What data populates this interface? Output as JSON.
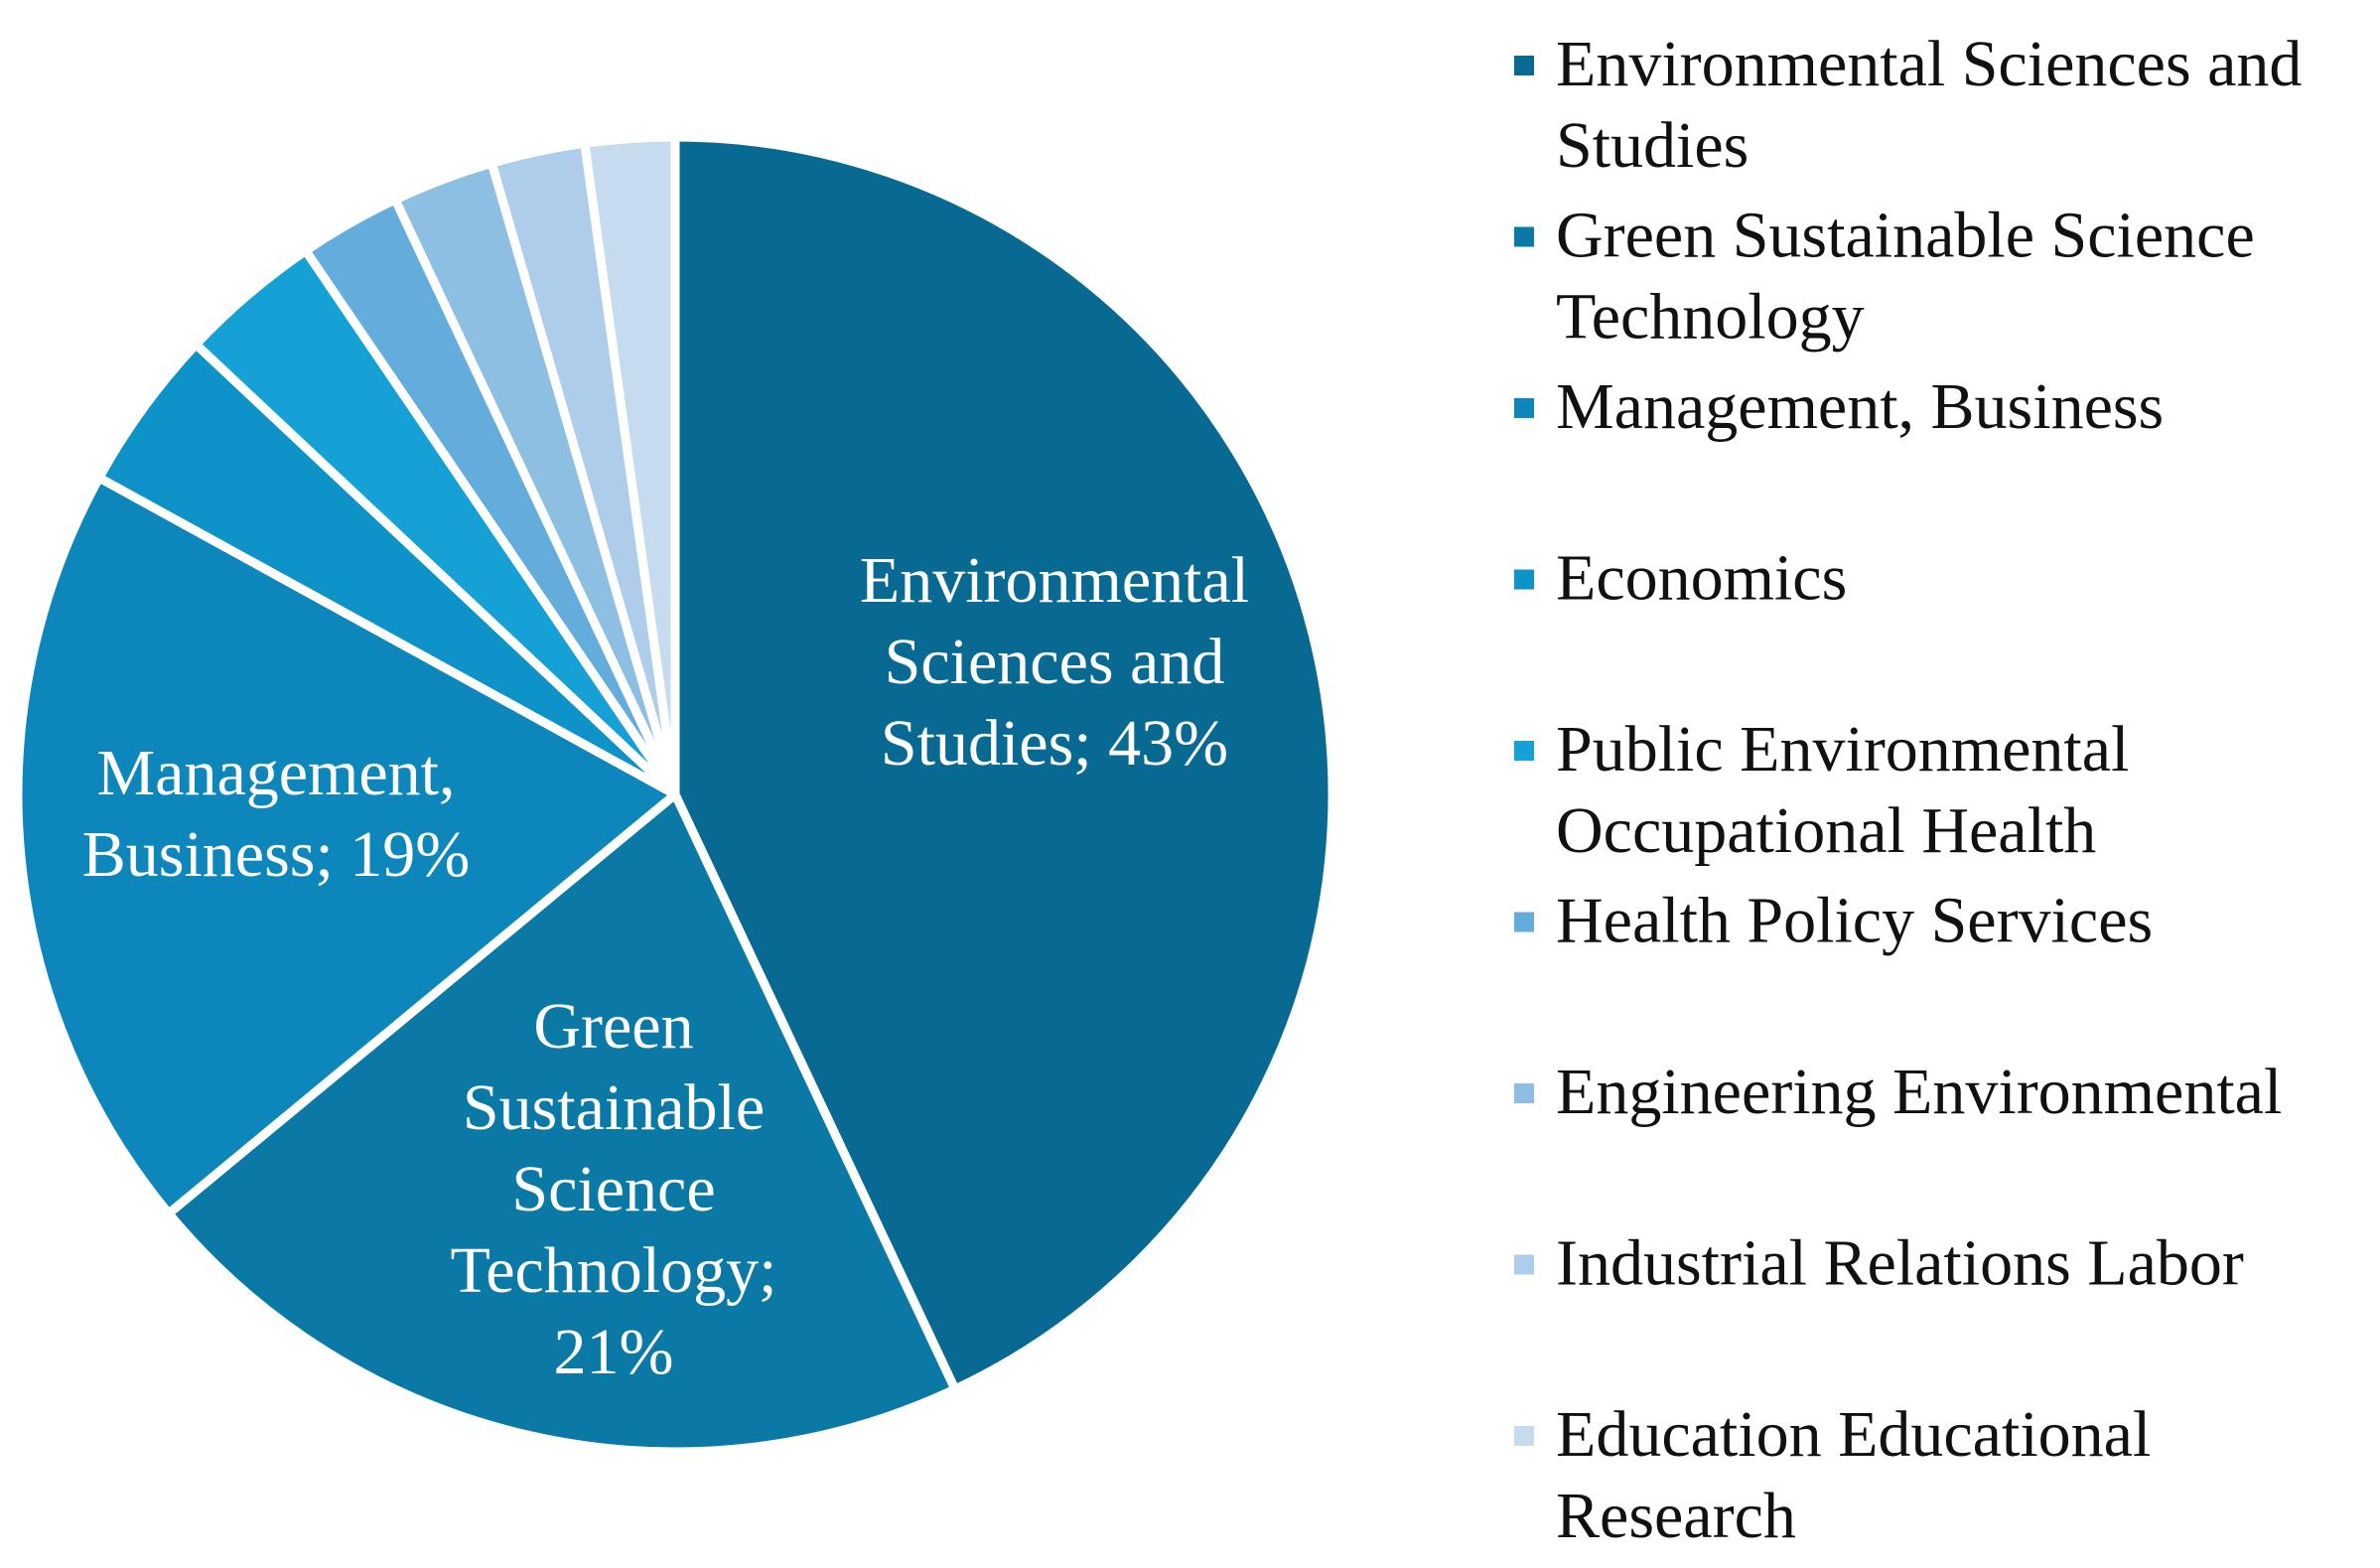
{
  "chart_data": {
    "type": "pie",
    "title": "",
    "legend_position": "right",
    "slices": [
      {
        "label": "Environmental Sciences and Studies",
        "value": 43,
        "color": "#086a92",
        "data_label": "Environmental Sciences and Studies; 43%"
      },
      {
        "label": "Green Sustainable Science Technology",
        "value": 21,
        "color": "#0b79a6",
        "data_label": "Green Sustainable Science Technology; 21%"
      },
      {
        "label": "Management, Business",
        "value": 19,
        "color": "#0d86bb",
        "data_label": "Management, Business; 19%"
      },
      {
        "label": "Economics",
        "value": 4,
        "color": "#0e93c8"
      },
      {
        "label": "Public Environmental Occupational Health",
        "value": 3.5,
        "color": "#15a1d6"
      },
      {
        "label": "Health Policy Services",
        "value": 2.5,
        "color": "#62addb"
      },
      {
        "label": "Engineering Environmental",
        "value": 2.5,
        "color": "#8dbfe3"
      },
      {
        "label": "Industrial Relations Labor",
        "value": 2.3,
        "color": "#adcdea"
      },
      {
        "label": "Education Educational Research",
        "value": 2.2,
        "color": "#c7dbef"
      }
    ]
  }
}
